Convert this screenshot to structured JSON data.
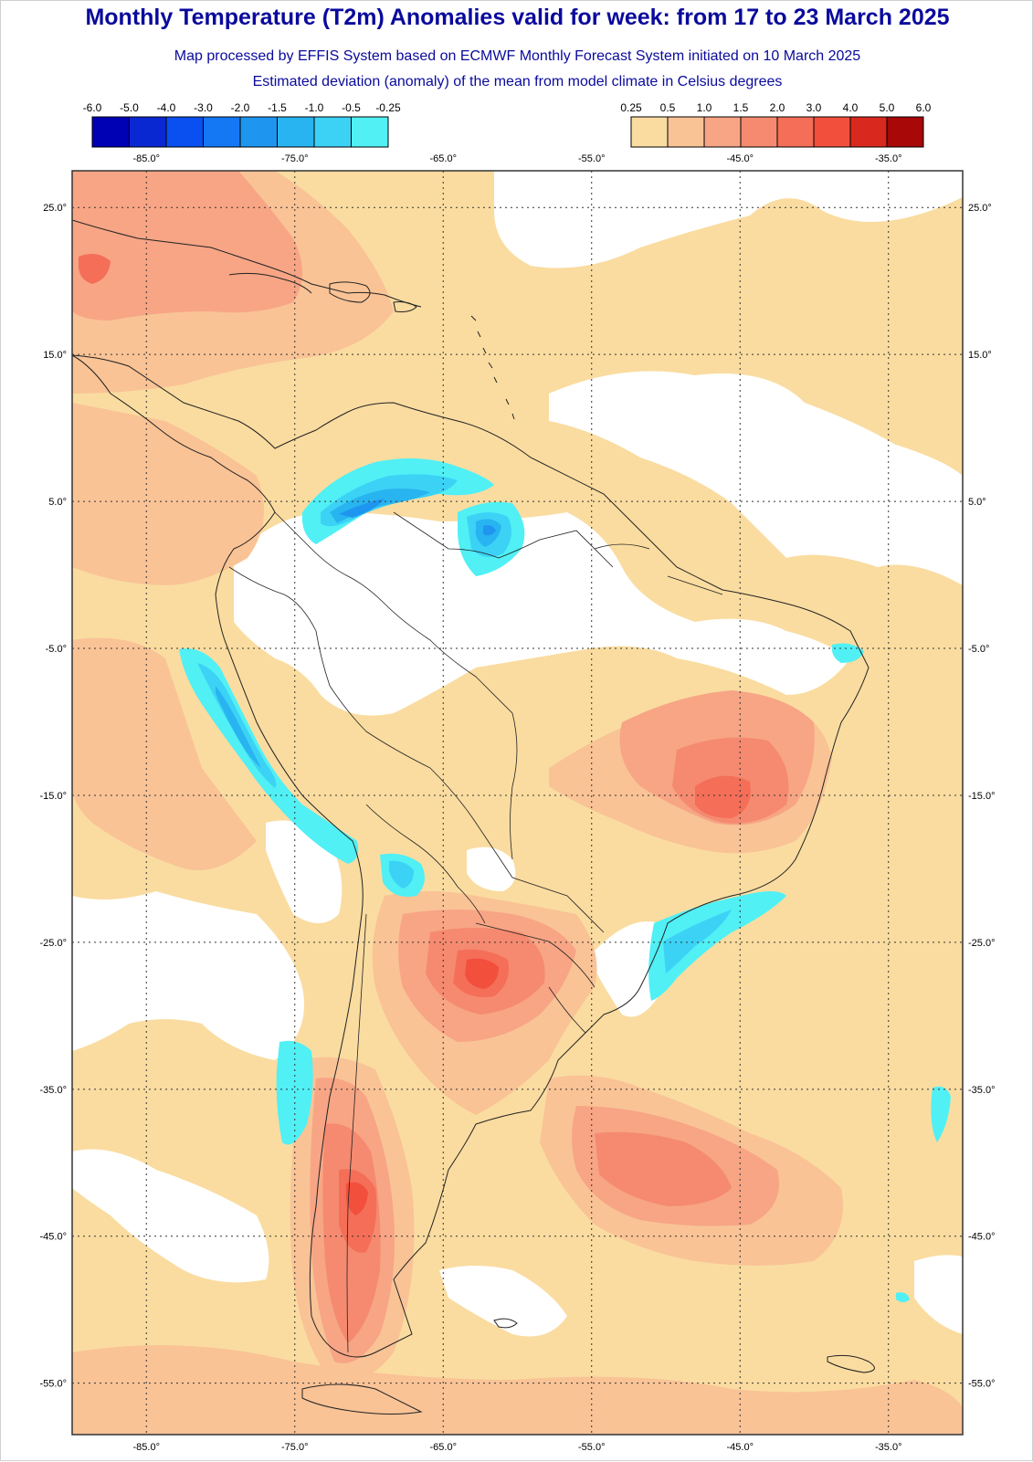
{
  "title": "Monthly Temperature (T2m) Anomalies valid for week: from 17 to 23 March 2025",
  "subtitle_1": "Map processed by EFFIS System based on ECMWF Monthly Forecast System initiated on 10 March 2025",
  "subtitle_2": "Estimated deviation (anomaly) of the mean from model climate in Celsius degrees",
  "legend": {
    "negative": {
      "labels": [
        "-6.0",
        "-5.0",
        "-4.0",
        "-3.0",
        "-2.0",
        "-1.5",
        "-1.0",
        "-0.5",
        "-0.25"
      ],
      "colors": [
        "#0000b4",
        "#0a28d2",
        "#0a50f0",
        "#1478f5",
        "#1e96f0",
        "#28b4f0",
        "#3cd2f5",
        "#50f0f5"
      ]
    },
    "positive": {
      "labels": [
        "0.25",
        "0.5",
        "1.0",
        "1.5",
        "2.0",
        "3.0",
        "4.0",
        "5.0",
        "6.0"
      ],
      "colors": [
        "#fadca0",
        "#f9c396",
        "#f7a585",
        "#f58a70",
        "#f46e58",
        "#f24f3c",
        "#d9281e",
        "#a80808"
      ]
    }
  },
  "map": {
    "lon_ticks": [
      "-85.0°",
      "-75.0°",
      "-65.0°",
      "-55.0°",
      "-45.0°",
      "-35.0°"
    ],
    "lat_ticks": [
      "25.0°",
      "15.0°",
      "5.0°",
      "-5.0°",
      "-15.0°",
      "-25.0°",
      "-35.0°",
      "-45.0°",
      "-55.0°"
    ],
    "lon_range": [
      -90,
      -30
    ],
    "lat_range": [
      -58.5,
      27.5
    ],
    "lon_values": [
      -85,
      -75,
      -65,
      -55,
      -45,
      -35
    ],
    "lat_values": [
      25,
      15,
      5,
      -5,
      -15,
      -25,
      -35,
      -45,
      -55
    ],
    "colors": {
      "ocean_base": "#fadca0",
      "neutral": "#ffffff",
      "warm_1": "#f9c396",
      "warm_2": "#f7a585",
      "warm_3": "#f58a70",
      "warm_4": "#f46e58",
      "warm_5": "#f24f3c",
      "cool_1": "#50f0f5",
      "cool_2": "#3cd2f5",
      "cool_3": "#28b4f0",
      "cool_4": "#1e96f0",
      "coast": "#222222",
      "grid": "#333333"
    }
  }
}
